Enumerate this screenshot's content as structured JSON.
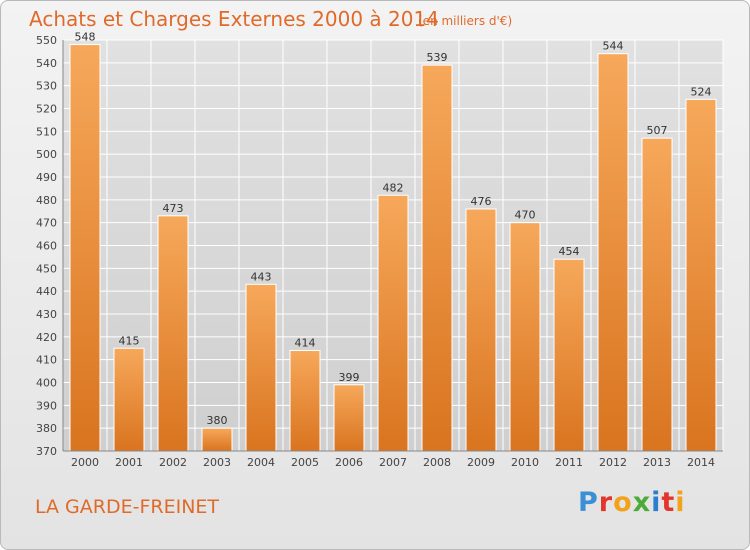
{
  "title": "Achats et Charges Externes 2000 à 2014",
  "subtitle": "(en milliers d'€)",
  "city": "LA GARDE-FREINET",
  "logo": {
    "letters": [
      "P",
      "r",
      "o",
      "x",
      "i",
      "t",
      "i"
    ]
  },
  "colors": {
    "accent": "#e06a2a",
    "bar_light": "#f6a85a",
    "bar_dark": "#d9741f",
    "grid": "#ffffff"
  },
  "chart_data": {
    "type": "bar",
    "title": "Achats et Charges Externes 2000 à 2014",
    "subtitle": "(en milliers d'€)",
    "categories": [
      "2000",
      "2001",
      "2002",
      "2003",
      "2004",
      "2005",
      "2006",
      "2007",
      "2008",
      "2009",
      "2010",
      "2011",
      "2012",
      "2013",
      "2014"
    ],
    "values": [
      548,
      415,
      473,
      380,
      443,
      414,
      399,
      482,
      539,
      476,
      470,
      454,
      544,
      507,
      524
    ],
    "xlabel": "",
    "ylabel": "",
    "ylim": [
      370,
      550
    ],
    "yticks": [
      370,
      380,
      390,
      400,
      410,
      420,
      430,
      440,
      450,
      460,
      470,
      480,
      490,
      500,
      510,
      520,
      530,
      540,
      550
    ],
    "grid": true,
    "data_labels": true,
    "legend": "none"
  }
}
